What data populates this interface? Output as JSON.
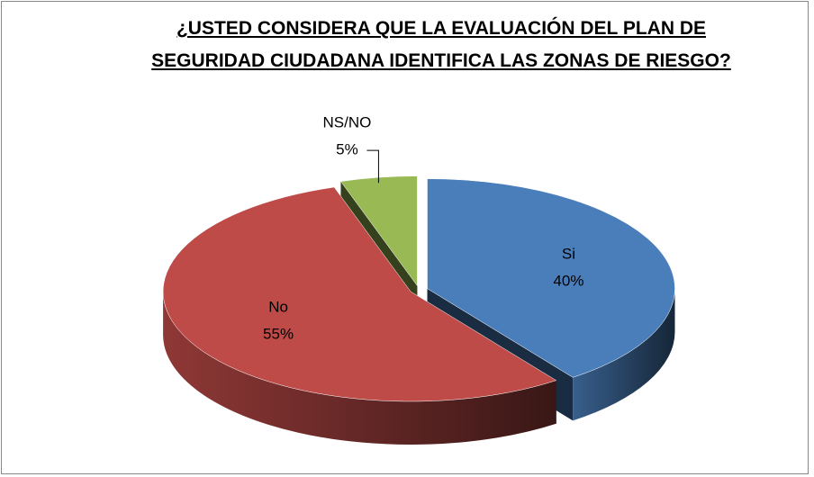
{
  "chart_data": {
    "type": "pie",
    "title": "¿USTED CONSIDERA QUE LA EVALUACIÓN DEL PLAN DE SEGURIDAD CIUDADANA IDENTIFICA LAS ZONAS DE RIESGO?",
    "categories": [
      "Si",
      "No",
      "NS/NO"
    ],
    "values": [
      40,
      55,
      5
    ],
    "value_labels": [
      "40%",
      "55%",
      "5%"
    ],
    "colors": [
      "#4a7ebb",
      "#be4b48",
      "#98b954"
    ]
  }
}
